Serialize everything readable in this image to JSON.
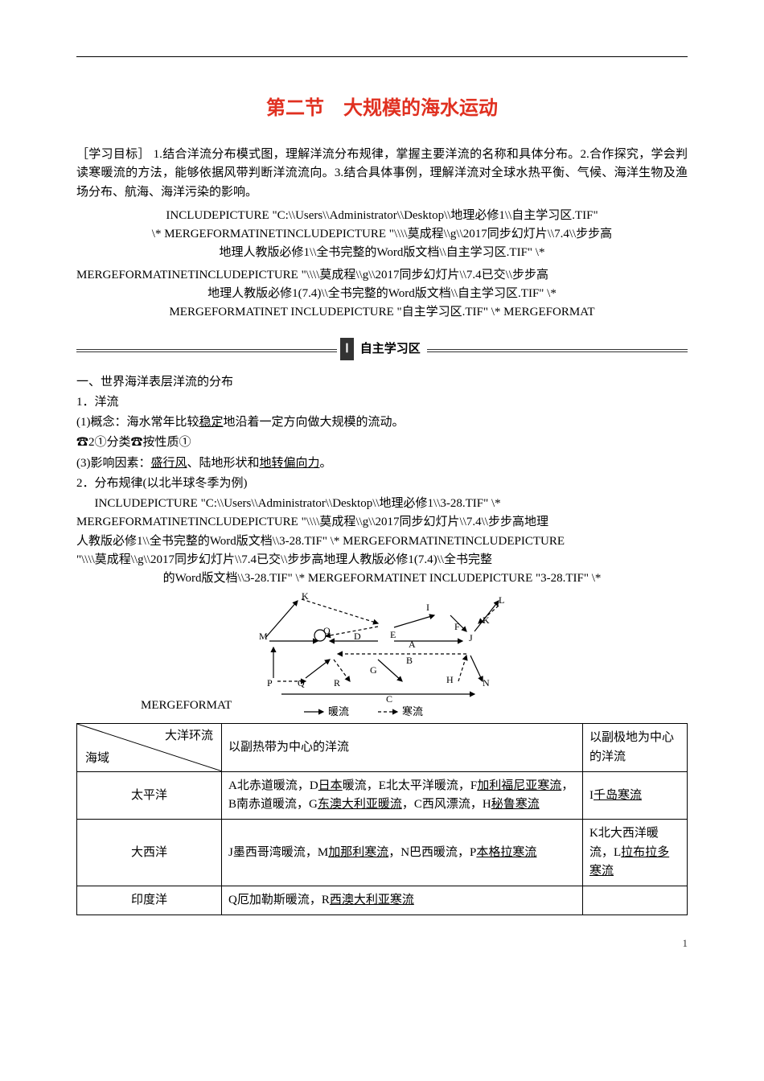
{
  "title": "第二节　大规模的海水运动",
  "objectives": "［学习目标］ 1.结合洋流分布模式图，理解洋流分布规律，掌握主要洋流的名称和具体分布。2.合作探究，学会判读寒暖流的方法，能够依据风带判断洋流流向。3.结合具体事例，理解洋流对全球水热平衡、气候、海洋生物及渔场分布、航海、海洋污染的影响。",
  "code1_l1": "INCLUDEPICTURE \"C:\\\\Users\\\\Administrator\\\\Desktop\\\\地理必修1\\\\自主学习区.TIF\"",
  "code1_l2": "\\* MERGEFORMATINETINCLUDEPICTURE \"\\\\\\\\莫成程\\\\g\\\\2017同步幻灯片\\\\7.4\\\\步步高",
  "code1_l3": "地理人教版必修1\\\\全书完整的Word版文档\\\\自主学习区.TIF\" \\*",
  "code1_l4": "MERGEFORMATINETINCLUDEPICTURE \"\\\\\\\\莫成程\\\\g\\\\2017同步幻灯片\\\\7.4已交\\\\步步高",
  "code1_l5": "地理人教版必修1(7.4)\\\\全书完整的Word版文档\\\\自主学习区.TIF\" \\*",
  "code1_l6": "MERGEFORMATINET INCLUDEPICTURE \"自主学习区.TIF\" \\* MERGEFORMAT",
  "band_roman": "Ⅰ",
  "band_label": "自主学习区",
  "sec1_h": "一、世界海洋表层洋流的分布",
  "p1": "1．洋流",
  "p2a": "(1)概念：海水常年比较",
  "p2u": "稳定",
  "p2b": "地沿着一定方向做大规模的流动。",
  "p3": "☎2①分类☎按性质①",
  "p4a": "(3)影响因素：",
  "p4u1": "盛行风",
  "p4m": "、陆地形状和",
  "p4u2": "地转偏向力",
  "p4e": "。",
  "p5": "2．分布规律(以北半球冬季为例)",
  "code2_l1": "INCLUDEPICTURE \"C:\\\\Users\\\\Administrator\\\\Desktop\\\\地理必修1\\\\3-28.TIF\" \\*",
  "code2_l2": "MERGEFORMATINETINCLUDEPICTURE \"\\\\\\\\莫成程\\\\g\\\\2017同步幻灯片\\\\7.4\\\\步步高地理",
  "code2_l3": "人教版必修1\\\\全书完整的Word版文档\\\\3-28.TIF\" \\* MERGEFORMATINETINCLUDEPICTURE",
  "code2_l4": "\"\\\\\\\\莫成程\\\\g\\\\2017同步幻灯片\\\\7.4已交\\\\步步高地理人教版必修1(7.4)\\\\全书完整",
  "code2_l5": "的Word版文档\\\\3-28.TIF\" \\* MERGEFORMATINET INCLUDEPICTURE \"3-28.TIF\" \\*",
  "merge_left": "MERGEFORMAT",
  "diagram": {
    "labels": [
      "K",
      "I",
      "L",
      "K",
      "M",
      "O",
      "D",
      "E",
      "F",
      "J",
      "A",
      "P",
      "Q",
      "R",
      "G",
      "B",
      "H",
      "N",
      "C"
    ],
    "legend_warm": "暖流",
    "legend_cold": "寒流"
  },
  "table": {
    "hdr_top": "大洋环流",
    "hdr_bot": "海域",
    "hdr_c2": "以副热带为中心的洋流",
    "hdr_c3": "以副极地为中心的洋流",
    "r1_c1": "太平洋",
    "r1_seg": [
      {
        "t": "A北赤道暖流，D"
      },
      {
        "u": "日本"
      },
      {
        "t": "暖流，E北太平洋暖流，F"
      },
      {
        "u": "加利福尼亚寒流"
      },
      {
        "t": "，B南赤道暖流，G"
      },
      {
        "u": "东澳大利亚暖流"
      },
      {
        "t": "，C西风漂流，H"
      },
      {
        "u": "秘鲁寒流"
      }
    ],
    "r1_c3": [
      {
        "t": "I"
      },
      {
        "u": "千岛寒流"
      }
    ],
    "r2_c1": "大西洋",
    "r2_seg": [
      {
        "t": "J墨西哥湾暖流，M"
      },
      {
        "u": "加那利寒流"
      },
      {
        "t": "，N巴西暖流，P"
      },
      {
        "u": "本格拉寒流"
      }
    ],
    "r2_c3": [
      {
        "t": "K北大西洋暖流，L"
      },
      {
        "u": "拉布拉多寒流"
      }
    ],
    "r3_c1": "印度洋",
    "r3_seg": [
      {
        "t": "Q厄加勒斯暖流，R"
      },
      {
        "u": "西澳大利亚寒流"
      }
    ],
    "r3_c3": []
  },
  "pagenum": "1"
}
